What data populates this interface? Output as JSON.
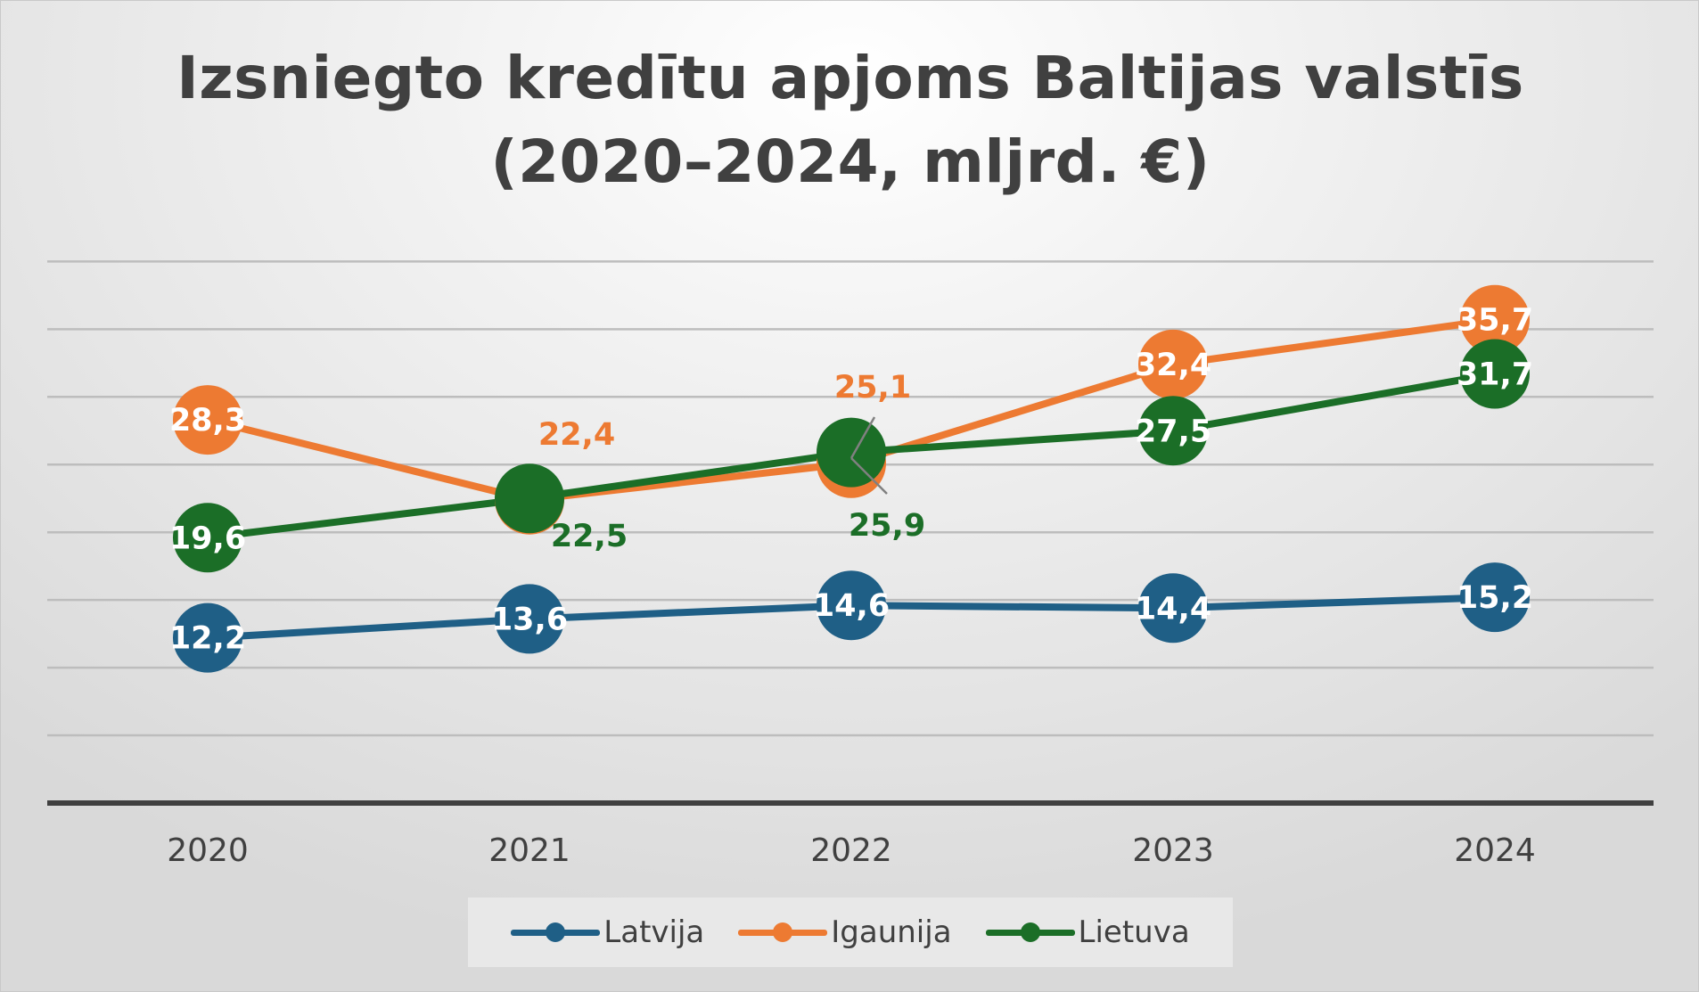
{
  "chart_data": {
    "type": "line",
    "title": "Izsniegto kredītu apjoms Baltijas valstīs (2020–2024, mljrd. €)",
    "title_lines": [
      "Izsniegto kredītu apjoms Baltijas valstīs",
      "(2020–2024, mljrd. €)"
    ],
    "categories": [
      "2020",
      "2021",
      "2022",
      "2023",
      "2024"
    ],
    "series": [
      {
        "name": "Latvija",
        "color": "#1f5f86",
        "values": [
          12.2,
          13.6,
          14.6,
          14.4,
          15.2
        ],
        "labels": [
          "12,2",
          "13,6",
          "14,6",
          "14,4",
          "15,2"
        ]
      },
      {
        "name": "Igaunija",
        "color": "#ed7a32",
        "values": [
          28.3,
          22.4,
          25.1,
          32.4,
          35.7
        ],
        "labels": [
          "28,3",
          "22,4",
          "25,1",
          "32,4",
          "35,7"
        ]
      },
      {
        "name": "Lietuva",
        "color": "#1b6e27",
        "values": [
          19.6,
          22.5,
          25.9,
          27.5,
          31.7
        ],
        "labels": [
          "19,6",
          "22,5",
          "25,9",
          "27,5",
          "31,7"
        ]
      }
    ],
    "ylim": [
      0,
      40
    ],
    "y_axis_labels_shown": false,
    "grid": true,
    "legend_position": "bottom"
  }
}
